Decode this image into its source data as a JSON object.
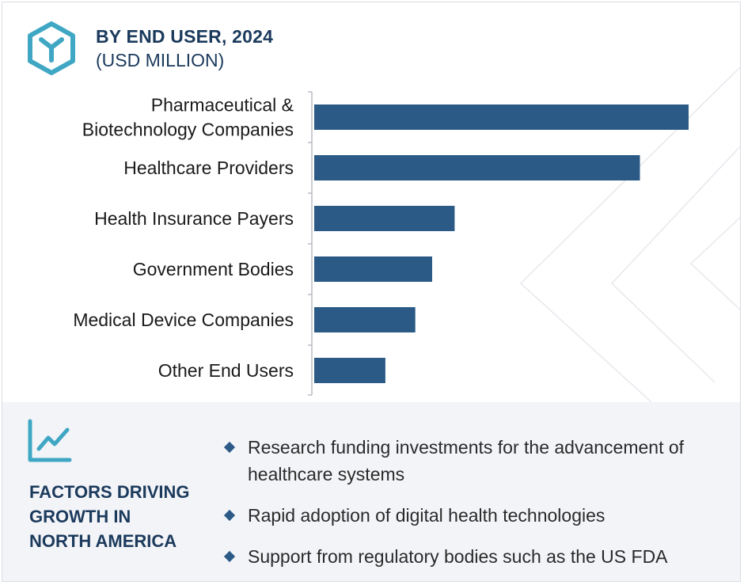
{
  "header": {
    "title": "BY END USER, 2024",
    "subtitle": "(USD MILLION)"
  },
  "colors": {
    "bar": "#2b5a87",
    "title": "#1b3a5c",
    "accent_icon": "#3fa7c4",
    "factors_bg": "#f3f4f8"
  },
  "chart_data": {
    "type": "bar",
    "orientation": "horizontal",
    "categories": [
      "Pharmaceutical & Biotechnology Companies",
      "Healthcare Providers",
      "Health Insurance Payers",
      "Government Bodies",
      "Medical Device Companies",
      "Other End Users"
    ],
    "category_lines": [
      [
        "Pharmaceutical &",
        "Biotechnology Companies"
      ],
      [
        "Healthcare Providers"
      ],
      [
        "Health Insurance Payers"
      ],
      [
        "Government Bodies"
      ],
      [
        "Medical Device Companies"
      ],
      [
        "Other End Users"
      ]
    ],
    "values": [
      100,
      87,
      37.5,
      31.5,
      27,
      19
    ],
    "value_scale": "relative (no values printed)",
    "xlim": [
      0,
      100
    ],
    "grid": false,
    "legend": "none"
  },
  "factors": {
    "heading_lines": [
      "FACTORS DRIVING",
      "GROWTH IN",
      "NORTH AMERICA"
    ],
    "items": [
      "Research funding investments for the advancement of healthcare systems",
      "Rapid adoption of digital health technologies",
      "Support from regulatory bodies such as the US FDA"
    ]
  }
}
